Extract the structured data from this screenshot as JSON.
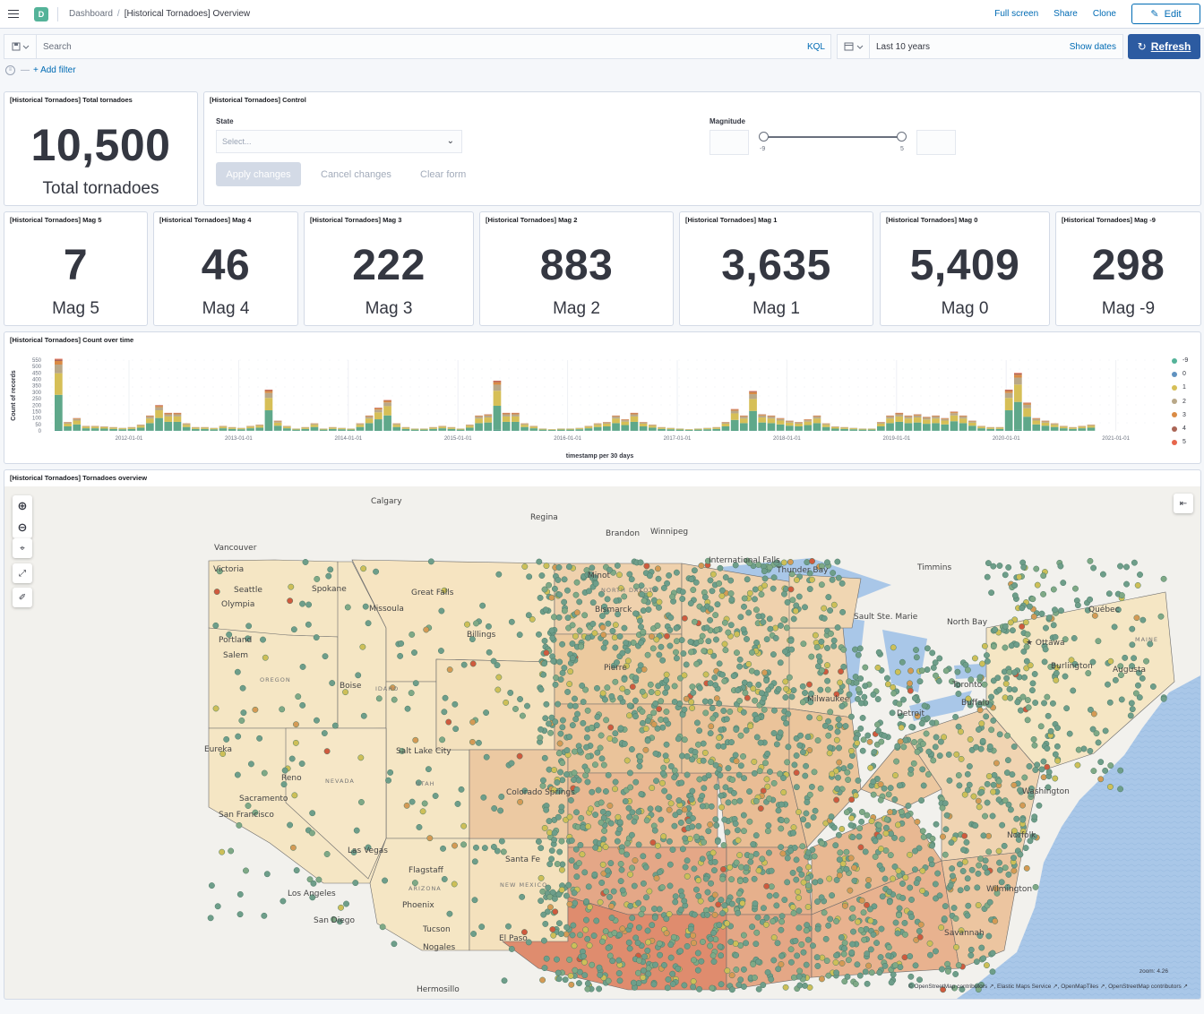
{
  "header": {
    "space_initial": "D",
    "breadcrumb_root": "Dashboard",
    "breadcrumb_current": "[Historical Tornadoes] Overview",
    "full_screen": "Full screen",
    "share": "Share",
    "clone": "Clone",
    "edit": "Edit"
  },
  "query": {
    "search_placeholder": "Search",
    "kql": "KQL",
    "date_range": "Last 10 years",
    "show_dates": "Show dates",
    "refresh": "Refresh",
    "add_filter": "+ Add filter"
  },
  "total_panel": {
    "title": "[Historical Tornadoes] Total tornadoes",
    "value": "10,500",
    "label": "Total tornadoes"
  },
  "control_panel": {
    "title": "[Historical Tornadoes] Control",
    "state_label": "State",
    "state_placeholder": "Select...",
    "magnitude_label": "Magnitude",
    "mag_min": "-9",
    "mag_max": "5",
    "apply": "Apply changes",
    "cancel": "Cancel changes",
    "clear": "Clear form"
  },
  "mag_panels": [
    {
      "title": "[Historical Tornadoes] Mag 5",
      "value": "7",
      "label": "Mag 5"
    },
    {
      "title": "[Historical Tornadoes] Mag 4",
      "value": "46",
      "label": "Mag 4"
    },
    {
      "title": "[Historical Tornadoes] Mag 3",
      "value": "222",
      "label": "Mag 3"
    },
    {
      "title": "[Historical Tornadoes] Mag 2",
      "value": "883",
      "label": "Mag 2"
    },
    {
      "title": "[Historical Tornadoes] Mag 1",
      "value": "3,635",
      "label": "Mag 1"
    },
    {
      "title": "[Historical Tornadoes] Mag 0",
      "value": "5,409",
      "label": "Mag 0"
    },
    {
      "title": "[Historical Tornadoes] Mag -9",
      "value": "298",
      "label": "Mag -9"
    }
  ],
  "chart_panel": {
    "title": "[Historical Tornadoes] Count over time"
  },
  "chart_data": {
    "type": "bar",
    "stacked": true,
    "title": "[Historical Tornadoes] Count over time",
    "xlabel": "timestamp per 30 days",
    "ylabel": "Count of records",
    "ylim": [
      0,
      550
    ],
    "yticks": [
      0,
      50,
      100,
      150,
      200,
      250,
      300,
      350,
      400,
      450,
      500,
      550
    ],
    "xticks": [
      "2012-01-01",
      "2013-01-01",
      "2014-01-01",
      "2015-01-01",
      "2016-01-01",
      "2017-01-01",
      "2018-01-01",
      "2019-01-01",
      "2020-01-01",
      "2021-01-01"
    ],
    "legend_position": "right",
    "legend": [
      {
        "name": "-9",
        "color": "#54b399"
      },
      {
        "name": "0",
        "color": "#6092c0"
      },
      {
        "name": "1",
        "color": "#d6bf57"
      },
      {
        "name": "2",
        "color": "#b9a888"
      },
      {
        "name": "3",
        "color": "#da8b45"
      },
      {
        "name": "4",
        "color": "#aa6556"
      },
      {
        "name": "5",
        "color": "#e7664c"
      }
    ],
    "totals": [
      560,
      70,
      100,
      40,
      40,
      35,
      30,
      25,
      30,
      50,
      120,
      200,
      140,
      140,
      60,
      30,
      30,
      25,
      40,
      30,
      25,
      40,
      50,
      320,
      80,
      40,
      20,
      30,
      60,
      20,
      30,
      25,
      20,
      60,
      120,
      180,
      240,
      60,
      30,
      20,
      20,
      30,
      40,
      30,
      20,
      50,
      120,
      130,
      390,
      140,
      140,
      60,
      40,
      20,
      15,
      20,
      20,
      25,
      40,
      60,
      70,
      120,
      90,
      140,
      70,
      50,
      30,
      25,
      20,
      15,
      20,
      25,
      30,
      70,
      170,
      120,
      310,
      130,
      120,
      100,
      80,
      70,
      90,
      120,
      60,
      35,
      30,
      25,
      20,
      20,
      70,
      120,
      140,
      120,
      130,
      110,
      120,
      100,
      150,
      120,
      80,
      40,
      30,
      30,
      320,
      450,
      220,
      100,
      80,
      60,
      40,
      30,
      40,
      50
    ]
  },
  "map_panel": {
    "title": "[Historical Tornadoes] Tornadoes overview",
    "zoom": "zoom: 4.26",
    "attribution": "© OpenStreetMap contributors ↗, Elastic Maps Service ↗, OpenMapTiles ↗, OpenStreetMap contributors ↗",
    "labels": [
      {
        "text": "Calgary",
        "x": 413,
        "y": 560
      },
      {
        "text": "Regina",
        "x": 591,
        "y": 578
      },
      {
        "text": "Brandon",
        "x": 675,
        "y": 596
      },
      {
        "text": "Winnipeg",
        "x": 725,
        "y": 594
      },
      {
        "text": "Vancouver",
        "x": 238,
        "y": 612
      },
      {
        "text": "Victoria",
        "x": 237,
        "y": 636
      },
      {
        "text": "International Falls",
        "x": 790,
        "y": 626
      },
      {
        "text": "Thunder Bay",
        "x": 866,
        "y": 637
      },
      {
        "text": "Timmins",
        "x": 1023,
        "y": 634
      },
      {
        "text": "Seattle",
        "x": 260,
        "y": 659
      },
      {
        "text": "Spokane",
        "x": 347,
        "y": 658
      },
      {
        "text": "Great Falls",
        "x": 458,
        "y": 662
      },
      {
        "text": "Minot",
        "x": 655,
        "y": 643
      },
      {
        "text": "Olympia",
        "x": 246,
        "y": 675
      },
      {
        "text": "Missoula",
        "x": 411,
        "y": 680
      },
      {
        "text": "Bismarck",
        "x": 663,
        "y": 681
      },
      {
        "text": "Sault Ste. Marie",
        "x": 952,
        "y": 689
      },
      {
        "text": "North Bay",
        "x": 1056,
        "y": 695
      },
      {
        "text": "Québec",
        "x": 1214,
        "y": 681
      },
      {
        "text": "Billings",
        "x": 520,
        "y": 709
      },
      {
        "text": "Portland",
        "x": 243,
        "y": 715
      },
      {
        "text": "★ Ottawa",
        "x": 1144,
        "y": 718
      },
      {
        "text": "Salem",
        "x": 248,
        "y": 732
      },
      {
        "text": "Pierre",
        "x": 673,
        "y": 746
      },
      {
        "text": "Burlington",
        "x": 1172,
        "y": 744
      },
      {
        "text": "Augusta",
        "x": 1241,
        "y": 748
      },
      {
        "text": "Boise",
        "x": 378,
        "y": 766
      },
      {
        "text": "Toronto",
        "x": 1062,
        "y": 765
      },
      {
        "text": "Milwaukee",
        "x": 900,
        "y": 781
      },
      {
        "text": "Buffalo",
        "x": 1072,
        "y": 785
      },
      {
        "text": "Detroit",
        "x": 1000,
        "y": 797
      },
      {
        "text": "Eureka",
        "x": 227,
        "y": 837
      },
      {
        "text": "Salt Lake City",
        "x": 441,
        "y": 839
      },
      {
        "text": "Reno",
        "x": 313,
        "y": 869
      },
      {
        "text": "Colorado Springs",
        "x": 564,
        "y": 885
      },
      {
        "text": "Sacramento",
        "x": 266,
        "y": 892
      },
      {
        "text": "Washington",
        "x": 1140,
        "y": 884
      },
      {
        "text": "San Francisco",
        "x": 243,
        "y": 910
      },
      {
        "text": "Norfolk",
        "x": 1123,
        "y": 933
      },
      {
        "text": "Las Vegas",
        "x": 387,
        "y": 950
      },
      {
        "text": "Santa Fe",
        "x": 563,
        "y": 960
      },
      {
        "text": "Flagstaff",
        "x": 455,
        "y": 972
      },
      {
        "text": "Wilmington",
        "x": 1100,
        "y": 993
      },
      {
        "text": "Los Angeles",
        "x": 320,
        "y": 998
      },
      {
        "text": "Phoenix",
        "x": 448,
        "y": 1011
      },
      {
        "text": "San Diego",
        "x": 349,
        "y": 1028
      },
      {
        "text": "Tucson",
        "x": 471,
        "y": 1038
      },
      {
        "text": "Savannah",
        "x": 1053,
        "y": 1042
      },
      {
        "text": "El Paso",
        "x": 556,
        "y": 1048
      },
      {
        "text": "Nogales",
        "x": 471,
        "y": 1058
      },
      {
        "text": "Hermosillo",
        "x": 464,
        "y": 1105
      }
    ],
    "state_labels": [
      {
        "text": "OREGON",
        "x": 289,
        "y": 759
      },
      {
        "text": "IDAHO",
        "x": 418,
        "y": 769
      },
      {
        "text": "NEVADA",
        "x": 362,
        "y": 872
      },
      {
        "text": "UTAH",
        "x": 463,
        "y": 875
      },
      {
        "text": "ARIZONA",
        "x": 455,
        "y": 992
      },
      {
        "text": "NEW MEXICO",
        "x": 557,
        "y": 988
      },
      {
        "text": "NORTH DAKOTA",
        "x": 670,
        "y": 659
      },
      {
        "text": "MAINE",
        "x": 1266,
        "y": 714
      }
    ]
  }
}
